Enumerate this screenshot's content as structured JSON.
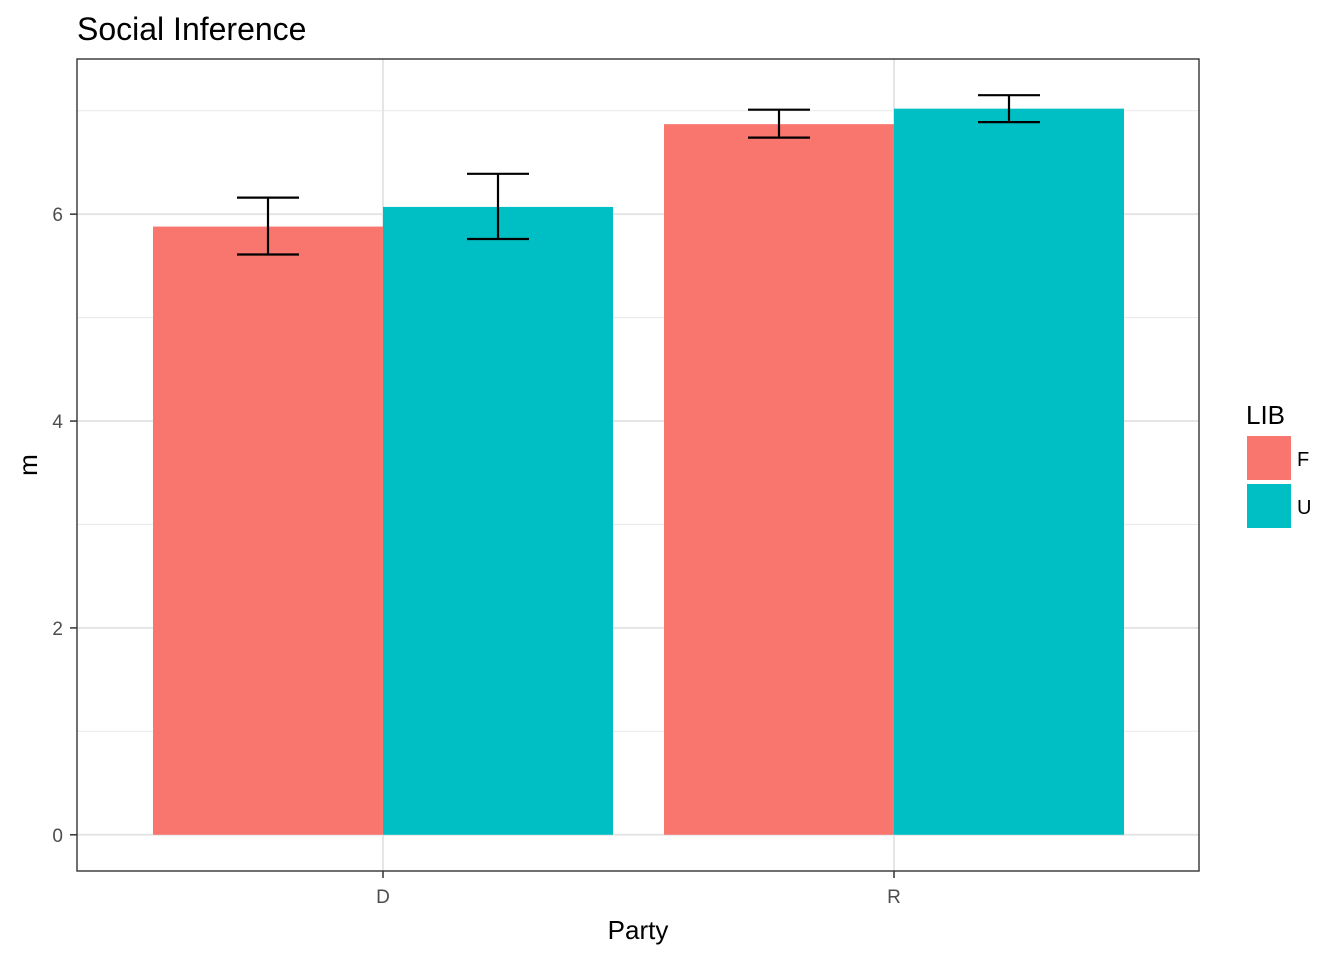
{
  "chart_data": {
    "type": "bar",
    "title": "Social Inference",
    "xlabel": "Party",
    "ylabel": "m",
    "categories": [
      "D",
      "R"
    ],
    "series": [
      {
        "name": "F",
        "color": "#F8766D",
        "values": [
          5.88,
          6.87
        ],
        "error_low": [
          5.61,
          6.74
        ],
        "error_high": [
          6.16,
          7.01
        ]
      },
      {
        "name": "U",
        "color": "#00BFC4",
        "values": [
          6.07,
          7.02
        ],
        "error_low": [
          5.76,
          6.89
        ],
        "error_high": [
          6.39,
          7.15
        ]
      }
    ],
    "ylim": [
      -0.35,
      7.5
    ],
    "yticks": [
      0,
      2,
      4,
      6
    ],
    "grid": true,
    "legend": {
      "title": "LIB",
      "position": "right",
      "items": [
        "F",
        "U"
      ]
    }
  }
}
